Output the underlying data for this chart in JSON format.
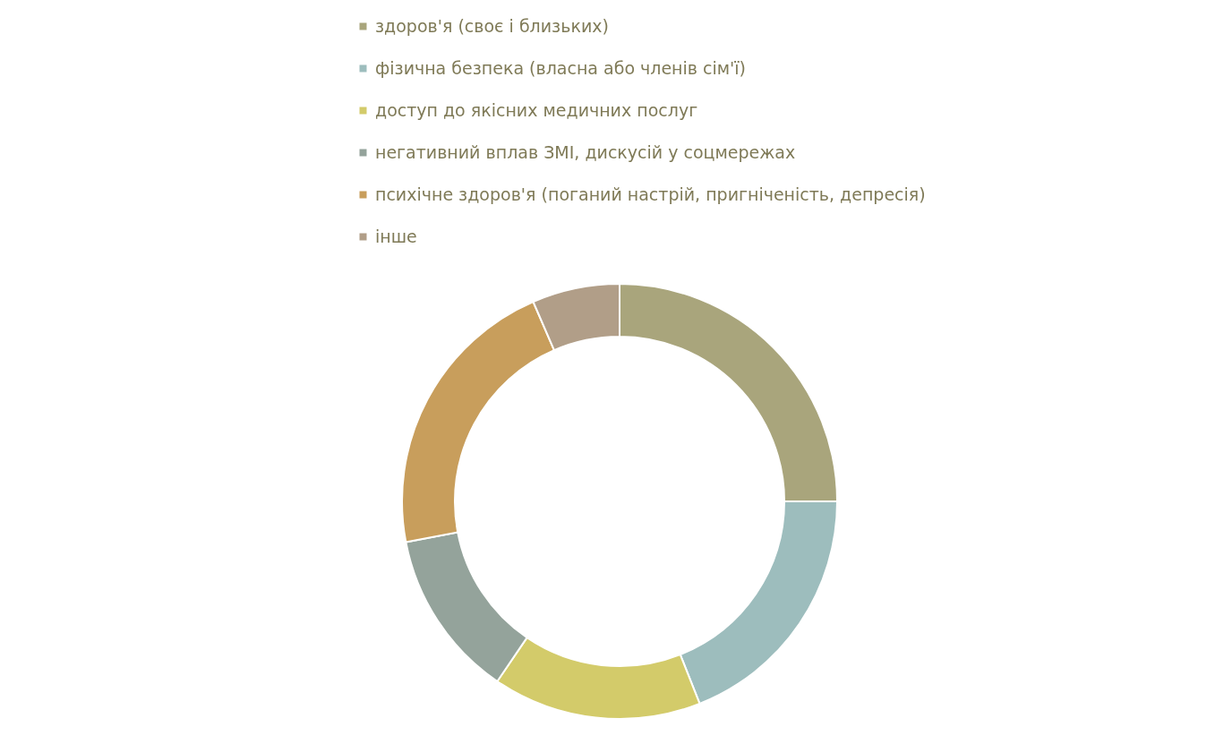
{
  "chart_data": {
    "type": "donut",
    "categories": [
      "здоров'я (своє і близьких)",
      "фізична безпека (власна або членів сім'ї)",
      "доступ до якісних медичних послуг",
      "негативний вплав ЗМІ, дискусій у соцмережах",
      "психічне здоров'я (поганий настрій, пригніченість, депресія)",
      "інше"
    ],
    "values": [
      25,
      19,
      15.5,
      12.5,
      21.5,
      6.5
    ],
    "colors": [
      "#a9a57c",
      "#9dbdbd",
      "#d3cb6a",
      "#94a39b",
      "#c89e5c",
      "#b19e88"
    ],
    "legend": "top"
  }
}
